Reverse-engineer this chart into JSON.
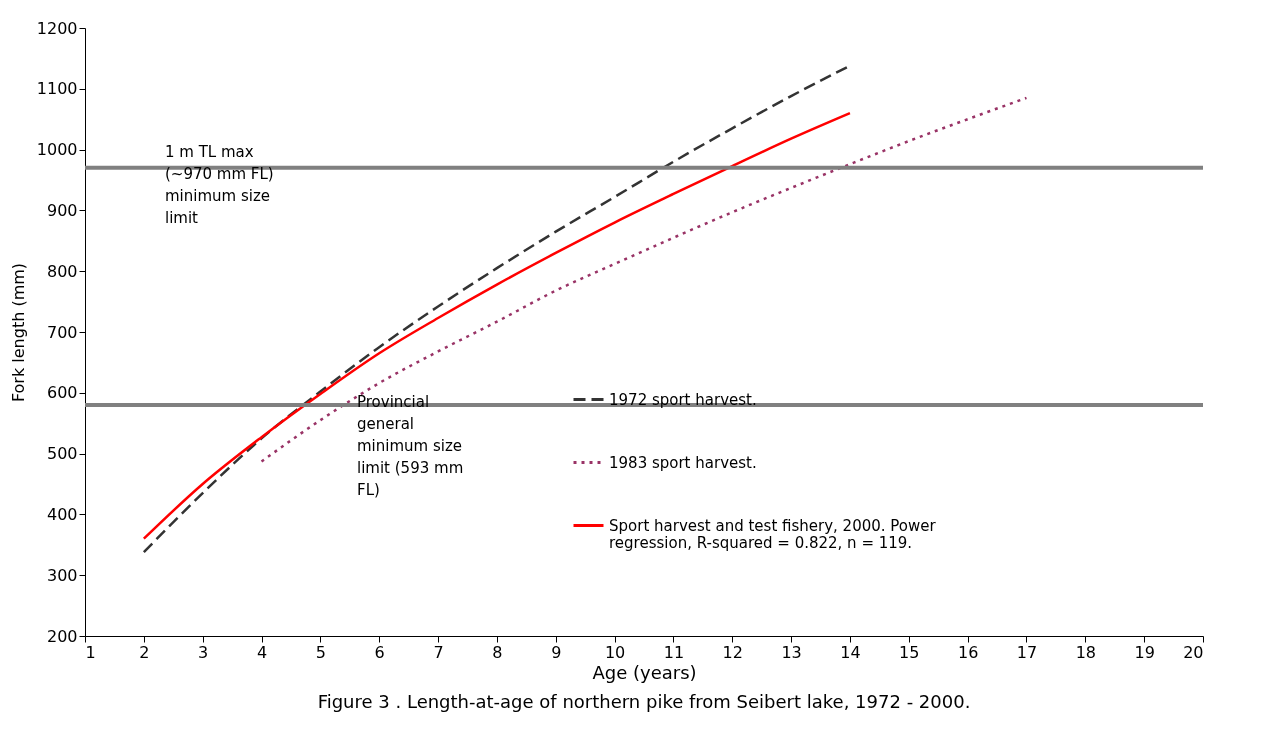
{
  "chart_data": {
    "type": "line",
    "title": "Figure 3 . Length-at-age of northern pike from Seibert lake, 1972 - 2000.",
    "xlabel": "Age (years)",
    "ylabel": "Fork length (mm)",
    "xlim": [
      1,
      20
    ],
    "xticks": [
      1,
      2,
      3,
      4,
      5,
      6,
      7,
      8,
      9,
      10,
      11,
      12,
      13,
      14,
      15,
      16,
      17,
      18,
      19,
      20
    ],
    "ylim": [
      200,
      1200
    ],
    "yticks": [
      200,
      300,
      400,
      500,
      600,
      700,
      800,
      900,
      1000,
      1100,
      1200
    ],
    "grid": false,
    "legend": "right",
    "marker": "none",
    "series": [
      {
        "name": "1972 sport harvest.",
        "color": "#333333",
        "line_style": "dashed",
        "x": [
          2,
          3,
          4,
          5,
          6,
          7,
          8,
          9,
          10,
          11,
          12,
          13,
          14
        ],
        "values": [
          338,
          435,
          525,
          602,
          675,
          742,
          805,
          865,
          922,
          980,
          1035,
          1088,
          1138
        ]
      },
      {
        "name": "1983 sport harvest.",
        "color": "#993366",
        "line_style": "dotted",
        "x": [
          4,
          5,
          6,
          7,
          8,
          9,
          10,
          11,
          12,
          13,
          14,
          15,
          16,
          17
        ],
        "values": [
          487,
          555,
          616,
          668,
          717,
          768,
          812,
          855,
          897,
          937,
          976,
          1014,
          1050,
          1085
        ]
      },
      {
        "name": "Sport harvest and test fishery, 2000. Power regression, R-squared = 0.822, n = 119.",
        "color": "#ff0000",
        "line_style": "solid",
        "x": [
          2,
          3,
          4,
          5,
          6,
          7,
          8,
          9,
          10,
          11,
          12,
          13,
          14
        ],
        "values": [
          360,
          450,
          527,
          598,
          665,
          723,
          778,
          830,
          880,
          927,
          973,
          1018,
          1060
        ]
      }
    ],
    "ref_lines": [
      {
        "axis": "y",
        "value": 970,
        "label": "1 m TL max (~970 mm FL) minimum size limit",
        "color": "#808080"
      },
      {
        "axis": "y",
        "value": 580,
        "label": "Provincial general minimum size limit (593 mm FL)",
        "color": "#808080"
      }
    ]
  }
}
